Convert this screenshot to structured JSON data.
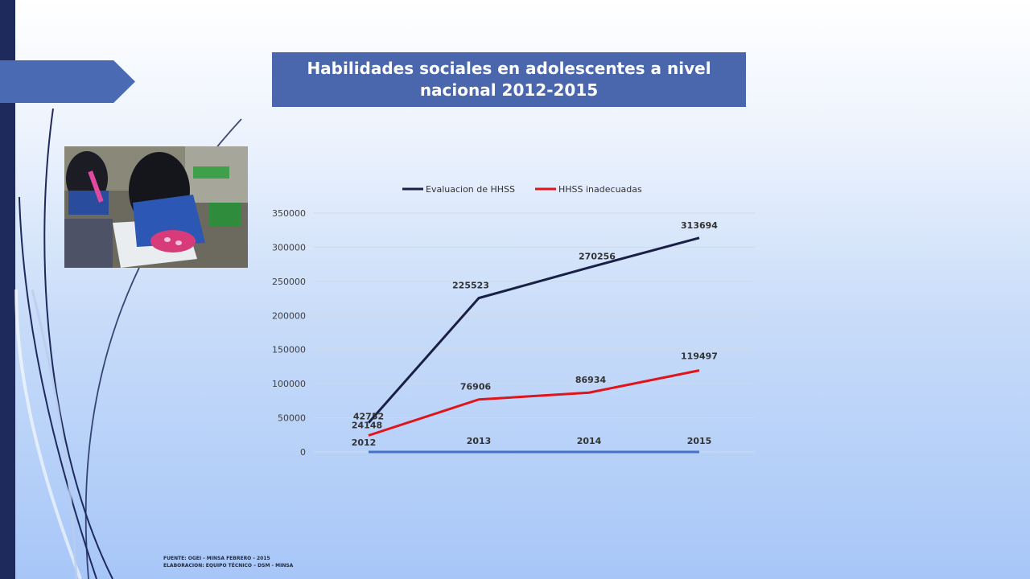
{
  "slide": {
    "title": "Habilidades sociales en adolescentes a nivel nacional  2012-2015",
    "footer_source": "FUENTE: OGEI - MINSA FEBRERO - 2015",
    "footer_elaboration": "ELABORACION: EQUIPO TÉCNICO – DSM - MINSA"
  },
  "photo": {
    "description_icon": "students-writing-photo"
  },
  "colors": {
    "left_bar": "#1f2a5c",
    "title_bg": "#4a67ae",
    "series_evaluacion": "#1a1f45",
    "series_inadecuadas": "#e0141b",
    "axis_line": "#4472c4"
  },
  "chart_data": {
    "type": "line",
    "categories": [
      "2012",
      "2013",
      "2014",
      "2015"
    ],
    "series": [
      {
        "name": "Evaluacion de HHSS",
        "values": [
          42752,
          225523,
          270256,
          313694
        ]
      },
      {
        "name": "HHSS inadecuadas",
        "values": [
          24148,
          76906,
          86934,
          119497
        ]
      }
    ],
    "data_labels": {
      "Evaluacion de HHSS": [
        "42752",
        "225523",
        "270256",
        "313694"
      ],
      "HHSS inadecuadas": [
        "24148",
        "76906",
        "86934",
        "119497"
      ]
    },
    "yticks": [
      "0",
      "50000",
      "100000",
      "150000",
      "200000",
      "250000",
      "300000",
      "350000"
    ],
    "ylim": [
      0,
      350000
    ],
    "grid": true,
    "legend": "top"
  }
}
